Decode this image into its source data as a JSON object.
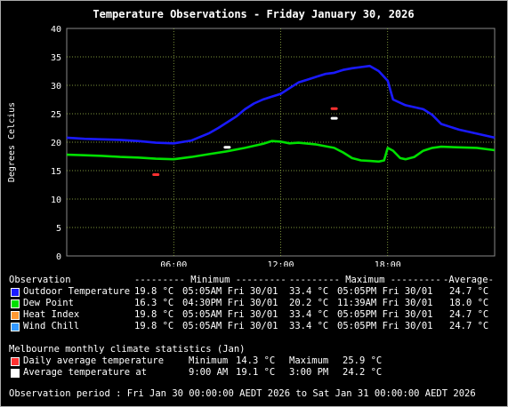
{
  "chart_data": {
    "type": "line",
    "title": "Temperature Observations - Friday January 30, 2026",
    "ylabel": "Degrees Celcius",
    "xlabel": "",
    "xlim": [
      0,
      24
    ],
    "ylim": [
      0,
      40
    ],
    "yticks": [
      0,
      5,
      10,
      15,
      20,
      25,
      30,
      35,
      40
    ],
    "xticks": [
      {
        "v": 6,
        "label": "06:00"
      },
      {
        "v": 12,
        "label": "12:00"
      },
      {
        "v": 18,
        "label": "18:00"
      }
    ],
    "grid": true,
    "series": [
      {
        "name": "Outdoor Temperature",
        "color": "#1a1aff",
        "x": [
          0,
          1,
          2,
          3,
          4,
          5,
          6,
          7,
          8,
          8.5,
          9,
          9.5,
          10,
          10.5,
          11,
          11.5,
          12,
          12.5,
          13,
          13.5,
          14,
          14.5,
          15,
          15.5,
          16,
          16.5,
          17,
          17.5,
          18,
          18.3,
          19,
          20,
          20.5,
          21,
          22,
          23,
          24
        ],
        "y": [
          20.8,
          20.6,
          20.5,
          20.4,
          20.2,
          19.9,
          19.8,
          20.3,
          21.6,
          22.5,
          23.5,
          24.5,
          25.8,
          26.8,
          27.5,
          28.0,
          28.5,
          29.5,
          30.5,
          31.0,
          31.5,
          32.0,
          32.2,
          32.7,
          33.0,
          33.2,
          33.4,
          32.5,
          30.8,
          27.5,
          26.5,
          25.8,
          24.8,
          23.2,
          22.2,
          21.5,
          20.8
        ]
      },
      {
        "name": "Dew Point",
        "color": "#00e000",
        "x": [
          0,
          1,
          2,
          3,
          4,
          4.5,
          5,
          6,
          7,
          8,
          9,
          10,
          11,
          11.5,
          12,
          12.5,
          13,
          14,
          15,
          15.5,
          16,
          16.5,
          17,
          17.5,
          17.8,
          18,
          18.3,
          18.7,
          19,
          19.5,
          20,
          20.5,
          21,
          22,
          23,
          24
        ],
        "y": [
          17.8,
          17.7,
          17.6,
          17.4,
          17.3,
          17.2,
          17.1,
          17.0,
          17.4,
          17.9,
          18.4,
          19.0,
          19.7,
          20.2,
          20.1,
          19.8,
          19.9,
          19.6,
          19.0,
          18.2,
          17.2,
          16.8,
          16.7,
          16.6,
          16.8,
          19.0,
          18.5,
          17.2,
          17.0,
          17.4,
          18.5,
          19.0,
          19.2,
          19.1,
          19.0,
          18.6
        ]
      }
    ],
    "markers": [
      {
        "name": "Daily average temperature minimum",
        "x": 5,
        "y": 14.3,
        "color": "#ff3030"
      },
      {
        "name": "Daily average temperature maximum",
        "x": 15,
        "y": 25.9,
        "color": "#ff3030"
      },
      {
        "name": "Average temperature minimum",
        "x": 9,
        "y": 19.1,
        "color": "#ffffff"
      },
      {
        "name": "Average temperature maximum",
        "x": 15,
        "y": 24.2,
        "color": "#ffffff"
      }
    ]
  },
  "table": {
    "header": {
      "observation": "Observation",
      "minimum": "--------- Minimum ---------",
      "maximum": "--------- Maximum ---------",
      "average": "-Average-"
    },
    "rows": [
      {
        "name": "Outdoor Temperature",
        "color": "#1a1aff",
        "min": "19.8 °C",
        "min_time": "05:05AM Fri 30/01",
        "max": "33.4 °C",
        "max_time": "05:05PM Fri 30/01",
        "avg": "24.7 °C"
      },
      {
        "name": "Dew Point",
        "color": "#00e000",
        "min": "16.3 °C",
        "min_time": "04:30PM Fri 30/01",
        "max": "20.2 °C",
        "max_time": "11:39AM Fri 30/01",
        "avg": "18.0 °C"
      },
      {
        "name": "Heat Index",
        "color": "#ff9933",
        "min": "19.8 °C",
        "min_time": "05:05AM Fri 30/01",
        "max": "33.4 °C",
        "max_time": "05:05PM Fri 30/01",
        "avg": "24.7 °C"
      },
      {
        "name": "Wind Chill",
        "color": "#3399ff",
        "min": "19.8 °C",
        "min_time": "05:05AM Fri 30/01",
        "max": "33.4 °C",
        "max_time": "05:05PM Fri 30/01",
        "avg": "24.7 °C"
      }
    ]
  },
  "climate": {
    "title": "Melbourne monthly climate statistics (Jan)",
    "rows": [
      {
        "name": "Daily average temperature",
        "color": "#ff3030",
        "min_label": "Minimum",
        "min": "14.3 °C",
        "max_label": "Maximum",
        "max": "25.9 °C"
      },
      {
        "name": "Average temperature at",
        "color": "#ffffff",
        "min_label": "9:00 AM",
        "min": "19.1 °C",
        "max_label": "3:00 PM",
        "max": "24.2 °C"
      }
    ]
  },
  "period": "Observation period : Fri Jan 30 00:00:00 AEDT 2026 to Sat Jan 31 00:00:00 AEDT 2026"
}
